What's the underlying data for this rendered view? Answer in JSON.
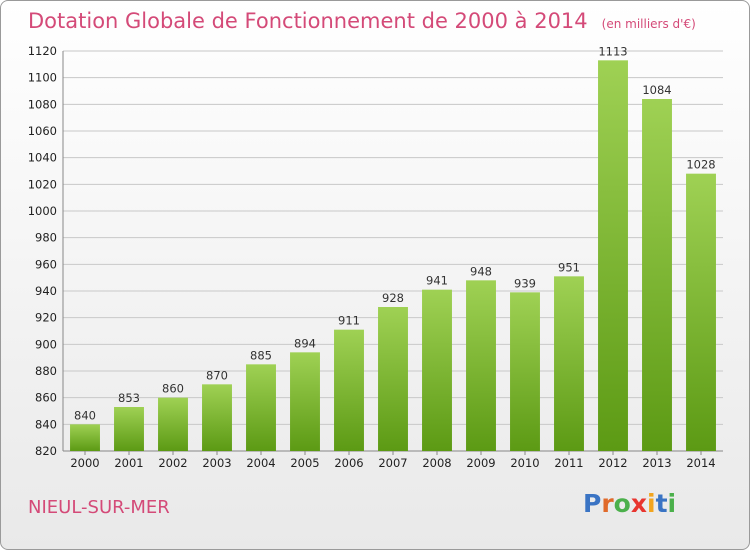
{
  "title": "Dotation Globale de Fonctionnement de 2000 à 2014",
  "unit_note": "(en milliers d'€)",
  "commune": "NIEUL-SUR-MER",
  "logo": {
    "text": "Proxiti",
    "letter_colors": [
      "#3a74c4",
      "#e06a2a",
      "#4bb04b",
      "#e8352f",
      "#f2a51f",
      "#3a74c4",
      "#4bb04b"
    ]
  },
  "colors": {
    "title": "#d44a78",
    "bar_top": "#9fd154",
    "bar_bottom": "#5c9a14",
    "grid": "#c8c8c8"
  },
  "chart_data": {
    "type": "bar",
    "categories": [
      "2000",
      "2001",
      "2002",
      "2003",
      "2004",
      "2005",
      "2006",
      "2007",
      "2008",
      "2009",
      "2010",
      "2011",
      "2012",
      "2013",
      "2014"
    ],
    "values": [
      840,
      853,
      860,
      870,
      885,
      894,
      911,
      928,
      941,
      948,
      939,
      951,
      1113,
      1084,
      1028
    ],
    "ylim": [
      820,
      1120
    ],
    "yticks": [
      820,
      840,
      860,
      880,
      900,
      920,
      940,
      960,
      980,
      1000,
      1020,
      1040,
      1060,
      1080,
      1100,
      1120
    ],
    "grid": true,
    "data_labels": true
  }
}
